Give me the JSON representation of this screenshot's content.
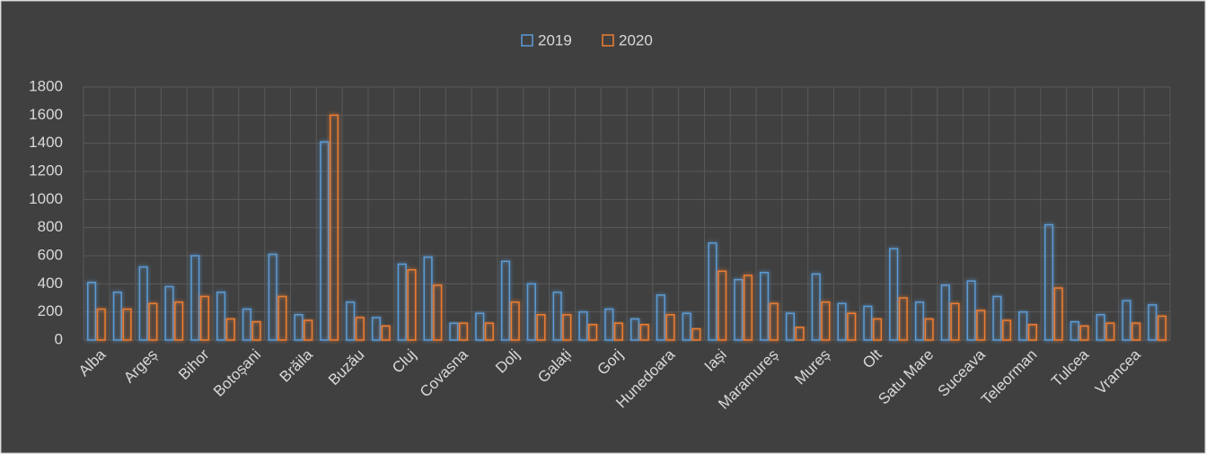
{
  "chart_data": {
    "type": "bar",
    "categories": [
      "Alba",
      null,
      "Argeș",
      null,
      "Bihor",
      null,
      "Botoșani",
      null,
      "Brăila",
      null,
      "Buzău",
      null,
      "Cluj",
      null,
      "Covasna",
      null,
      "Dolj",
      null,
      "Galați",
      null,
      "Gorj",
      null,
      "Hunedoara",
      null,
      "Iași",
      null,
      "Maramureș",
      null,
      "Mureș",
      null,
      "Olt",
      null,
      "Satu Mare",
      null,
      "Suceava",
      null,
      "Teleorman",
      null,
      "Tulcea",
      null,
      "Vrancea",
      null
    ],
    "series": [
      {
        "name": "2019",
        "color": "#5b9bd5",
        "values": [
          410,
          340,
          520,
          380,
          600,
          340,
          220,
          610,
          180,
          1410,
          270,
          160,
          540,
          590,
          120,
          190,
          560,
          400,
          340,
          200,
          220,
          150,
          320,
          190,
          690,
          430,
          480,
          190,
          470,
          260,
          240,
          650,
          270,
          390,
          420,
          310,
          200,
          820,
          130,
          180,
          280,
          250
        ]
      },
      {
        "name": "2020",
        "color": "#ed7d31",
        "values": [
          220,
          220,
          260,
          270,
          310,
          150,
          130,
          310,
          140,
          1600,
          160,
          100,
          500,
          390,
          120,
          120,
          270,
          180,
          180,
          110,
          120,
          110,
          180,
          80,
          490,
          460,
          260,
          90,
          270,
          190,
          150,
          300,
          150,
          260,
          210,
          140,
          110,
          370,
          100,
          120,
          120,
          170
        ]
      }
    ],
    "ylim": [
      0,
      1800
    ],
    "yticks": [
      0,
      200,
      400,
      600,
      800,
      1000,
      1200,
      1400,
      1600,
      1800
    ],
    "grid": true,
    "legend": "top"
  }
}
